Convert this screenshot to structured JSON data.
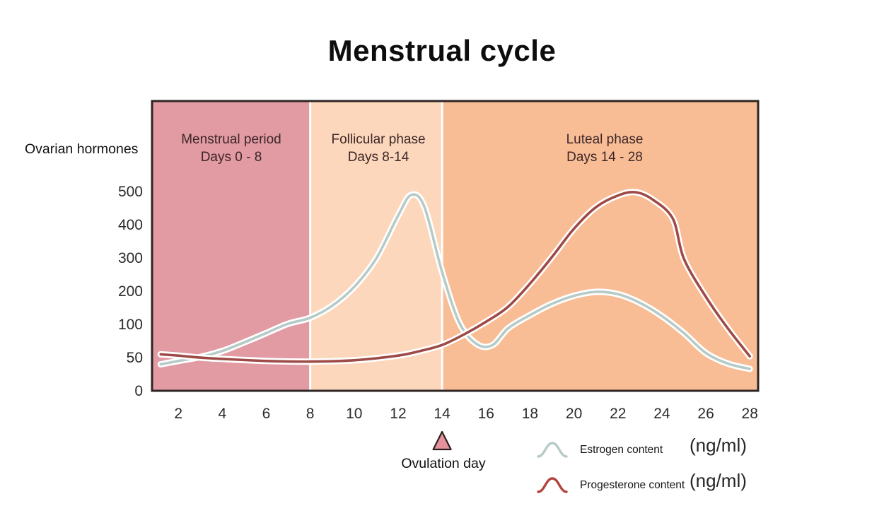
{
  "title": "Menstrual cycle",
  "y_axis_title": "Ovarian hormones",
  "ovulation": {
    "label": "Ovulation day",
    "day": 14,
    "marker_color": "#e6929d",
    "marker_outline": "#2b2020"
  },
  "legend": [
    {
      "label": "Estrogen content",
      "unit": "(ng/ml)",
      "color": "#b6cbc7"
    },
    {
      "label": "Progesterone content",
      "unit": "(ng/ml)",
      "color": "#b0453f"
    }
  ],
  "colors": {
    "background": "#ffffff",
    "plot_border": "#2e2523",
    "phase_divider": "#ffffff",
    "curve_casing": "#ffffff"
  },
  "chart_data": {
    "type": "line",
    "title": "Menstrual cycle",
    "ylabel": "Ovarian hormones",
    "unit": "ng/ml",
    "x_ticks": [
      2,
      4,
      6,
      8,
      10,
      12,
      14,
      16,
      18,
      20,
      22,
      24,
      26,
      28
    ],
    "y_ticks": [
      0,
      50,
      100,
      200,
      300,
      400,
      500
    ],
    "y_scale_note": "tick labels evenly spaced: 50-unit steps up to 100, then 100-unit steps to 500",
    "xlim_days": [
      0.8,
      28.4
    ],
    "grid": false,
    "legend_position": "below-right",
    "phases": [
      {
        "name": "Menstrual period",
        "days_label": "Days 0 - 8",
        "from_day": 0.8,
        "to_day": 8,
        "color": "#e29aa3"
      },
      {
        "name": "Follicular phase",
        "days_label": "Days 8-14",
        "from_day": 8,
        "to_day": 14,
        "color": "#fcd7bc"
      },
      {
        "name": "Luteal phase",
        "days_label": "Days 14 - 28",
        "from_day": 14,
        "to_day": 28.4,
        "color": "#f9bd96"
      }
    ],
    "series": [
      {
        "name": "Estrogen content",
        "color": "#b6cbc7",
        "points": [
          [
            1.2,
            41
          ],
          [
            2,
            46
          ],
          [
            3,
            52
          ],
          [
            4,
            61
          ],
          [
            5,
            74
          ],
          [
            6,
            88
          ],
          [
            7,
            104
          ],
          [
            8,
            122
          ],
          [
            9,
            158
          ],
          [
            10,
            215
          ],
          [
            11,
            300
          ],
          [
            12,
            430
          ],
          [
            12.6,
            492
          ],
          [
            13.2,
            455
          ],
          [
            14,
            260
          ],
          [
            14.8,
            105
          ],
          [
            15.6,
            71
          ],
          [
            16.3,
            70
          ],
          [
            17,
            95
          ],
          [
            18,
            130
          ],
          [
            19,
            164
          ],
          [
            20,
            188
          ],
          [
            21,
            200
          ],
          [
            22,
            193
          ],
          [
            23,
            167
          ],
          [
            24,
            127
          ],
          [
            25,
            88
          ],
          [
            26,
            58
          ],
          [
            27,
            42
          ],
          [
            28,
            34
          ]
        ]
      },
      {
        "name": "Progesterone content",
        "color": "#9e4a46",
        "points": [
          [
            1.2,
            56
          ],
          [
            2,
            54
          ],
          [
            3,
            51
          ],
          [
            4,
            49
          ],
          [
            6,
            46
          ],
          [
            8,
            45
          ],
          [
            10,
            47
          ],
          [
            12,
            54
          ],
          [
            13,
            61
          ],
          [
            14,
            70
          ],
          [
            15,
            86
          ],
          [
            16,
            110
          ],
          [
            17,
            155
          ],
          [
            18,
            225
          ],
          [
            19,
            305
          ],
          [
            20,
            390
          ],
          [
            21,
            455
          ],
          [
            22,
            490
          ],
          [
            22.8,
            500
          ],
          [
            23.6,
            477
          ],
          [
            24.5,
            420
          ],
          [
            25,
            300
          ],
          [
            26,
            185
          ],
          [
            27,
            95
          ],
          [
            28,
            53
          ]
        ]
      }
    ]
  }
}
